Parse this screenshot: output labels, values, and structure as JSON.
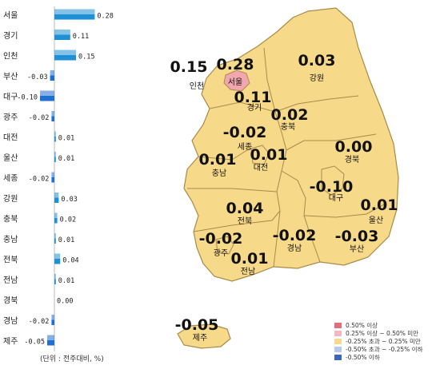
{
  "chart_data": {
    "type": "bar",
    "orientation": "horizontal",
    "categories": [
      "서울",
      "경기",
      "인천",
      "부산",
      "대구",
      "광주",
      "대전",
      "울산",
      "세종",
      "강원",
      "충북",
      "충남",
      "전북",
      "전남",
      "경북",
      "경남",
      "제주"
    ],
    "values": [
      0.28,
      0.11,
      0.15,
      -0.03,
      -0.1,
      -0.02,
      0.01,
      0.01,
      -0.02,
      0.03,
      0.02,
      0.01,
      0.04,
      0.01,
      0.0,
      -0.02,
      -0.05
    ],
    "value_labels": [
      "0.28",
      "0.11",
      "0.15",
      "-0.03",
      "-0.10",
      "-0.02",
      "0.01",
      "0.01",
      "-0.02",
      "0.03",
      "0.02",
      "0.01",
      "0.04",
      "0.01",
      "0.00",
      "-0.02",
      "-0.05"
    ],
    "unit_note": "(단위 : 전주대비, %)",
    "grid": false
  },
  "map": {
    "regions": [
      {
        "name": "서울",
        "value": "0.28"
      },
      {
        "name": "인천",
        "value": "0.15"
      },
      {
        "name": "경기",
        "value": "0.11"
      },
      {
        "name": "강원",
        "value": "0.03"
      },
      {
        "name": "충북",
        "value": "0.02"
      },
      {
        "name": "세종",
        "value": "-0.02"
      },
      {
        "name": "대전",
        "value": "0.01"
      },
      {
        "name": "충남",
        "value": "0.01"
      },
      {
        "name": "경북",
        "value": "0.00"
      },
      {
        "name": "대구",
        "value": "-0.10"
      },
      {
        "name": "울산",
        "value": "0.01"
      },
      {
        "name": "전북",
        "value": "0.04"
      },
      {
        "name": "광주",
        "value": "-0.02"
      },
      {
        "name": "경남",
        "value": "-0.02"
      },
      {
        "name": "부산",
        "value": "-0.03"
      },
      {
        "name": "전남",
        "value": "0.01"
      },
      {
        "name": "제주",
        "value": "-0.05"
      }
    ],
    "colors": {
      "land": "#f7d98a",
      "land_border": "#a88a4a",
      "seoul": "#f2a6b0",
      "bar_positive": "#1f8fd6",
      "bar_negative": "#1f6fd0"
    }
  },
  "legend": [
    {
      "label": "0.50% 이상",
      "color": "#e0707e"
    },
    {
      "label": "0.25% 이상 ~ 0.50% 미만",
      "color": "#f6b8c0"
    },
    {
      "label": "-0.25% 초과 ~ 0.25% 미만",
      "color": "#f7d98a"
    },
    {
      "label": "-0.50% 초과 ~ -0.25% 이하",
      "color": "#b7cbe8"
    },
    {
      "label": "-0.50% 이하",
      "color": "#3a67b8"
    }
  ]
}
